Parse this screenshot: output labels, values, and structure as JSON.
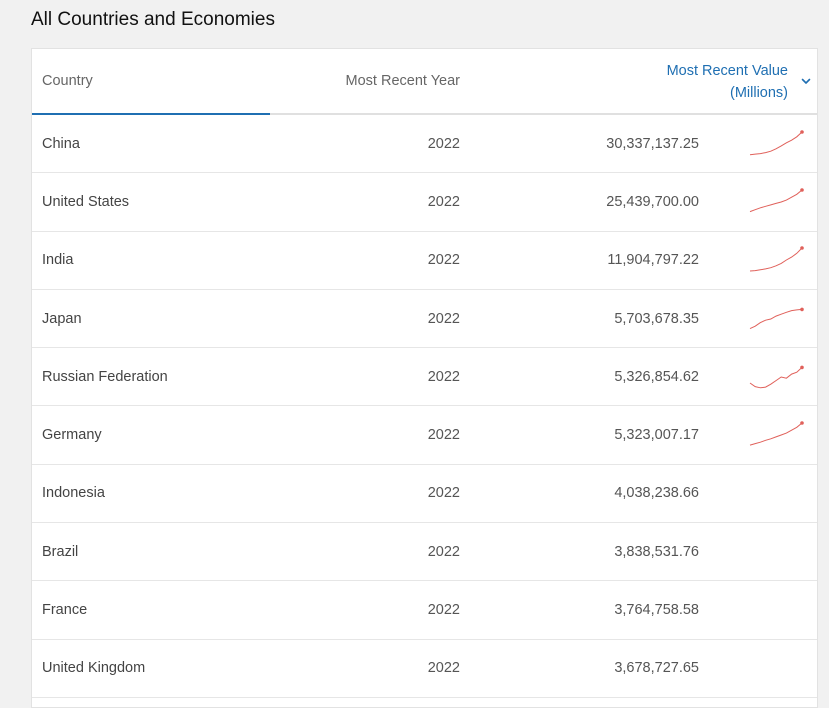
{
  "page": {
    "title": "All Countries and Economies"
  },
  "table": {
    "headers": {
      "country": "Country",
      "year": "Most Recent Year",
      "value_line1": "Most Recent Value",
      "value_line2": "(Millions)"
    },
    "sort_icon": "chevron-down-icon",
    "accent_color": "#1f6fb2",
    "sparkline_color": "#e0605a",
    "rows": [
      {
        "country": "China",
        "year": "2022",
        "value": "30,337,137.25",
        "sparkline": [
          0.05,
          0.08,
          0.1,
          0.14,
          0.2,
          0.3,
          0.42,
          0.55,
          0.66,
          0.8,
          1.0
        ]
      },
      {
        "country": "United States",
        "year": "2022",
        "value": "25,439,700.00",
        "sparkline": [
          0.1,
          0.18,
          0.26,
          0.32,
          0.38,
          0.44,
          0.5,
          0.58,
          0.7,
          0.82,
          1.0
        ]
      },
      {
        "country": "India",
        "year": "2022",
        "value": "11,904,797.22",
        "sparkline": [
          0.04,
          0.06,
          0.09,
          0.13,
          0.18,
          0.26,
          0.36,
          0.5,
          0.62,
          0.78,
          1.0
        ]
      },
      {
        "country": "Japan",
        "year": "2022",
        "value": "5,703,678.35",
        "sparkline": [
          0.1,
          0.2,
          0.35,
          0.45,
          0.5,
          0.62,
          0.7,
          0.78,
          0.85,
          0.88,
          0.9
        ]
      },
      {
        "country": "Russian Federation",
        "year": "2022",
        "value": "5,326,854.62",
        "sparkline": [
          0.25,
          0.1,
          0.05,
          0.08,
          0.2,
          0.35,
          0.5,
          0.45,
          0.62,
          0.7,
          0.9
        ]
      },
      {
        "country": "Germany",
        "year": "2022",
        "value": "5,323,007.17",
        "sparkline": [
          0.08,
          0.14,
          0.2,
          0.28,
          0.34,
          0.42,
          0.5,
          0.58,
          0.7,
          0.82,
          1.0
        ]
      },
      {
        "country": "Indonesia",
        "year": "2022",
        "value": "4,038,238.66",
        "sparkline": null
      },
      {
        "country": "Brazil",
        "year": "2022",
        "value": "3,838,531.76",
        "sparkline": null
      },
      {
        "country": "France",
        "year": "2022",
        "value": "3,764,758.58",
        "sparkline": null
      },
      {
        "country": "United Kingdom",
        "year": "2022",
        "value": "3,678,727.65",
        "sparkline": null
      }
    ]
  }
}
